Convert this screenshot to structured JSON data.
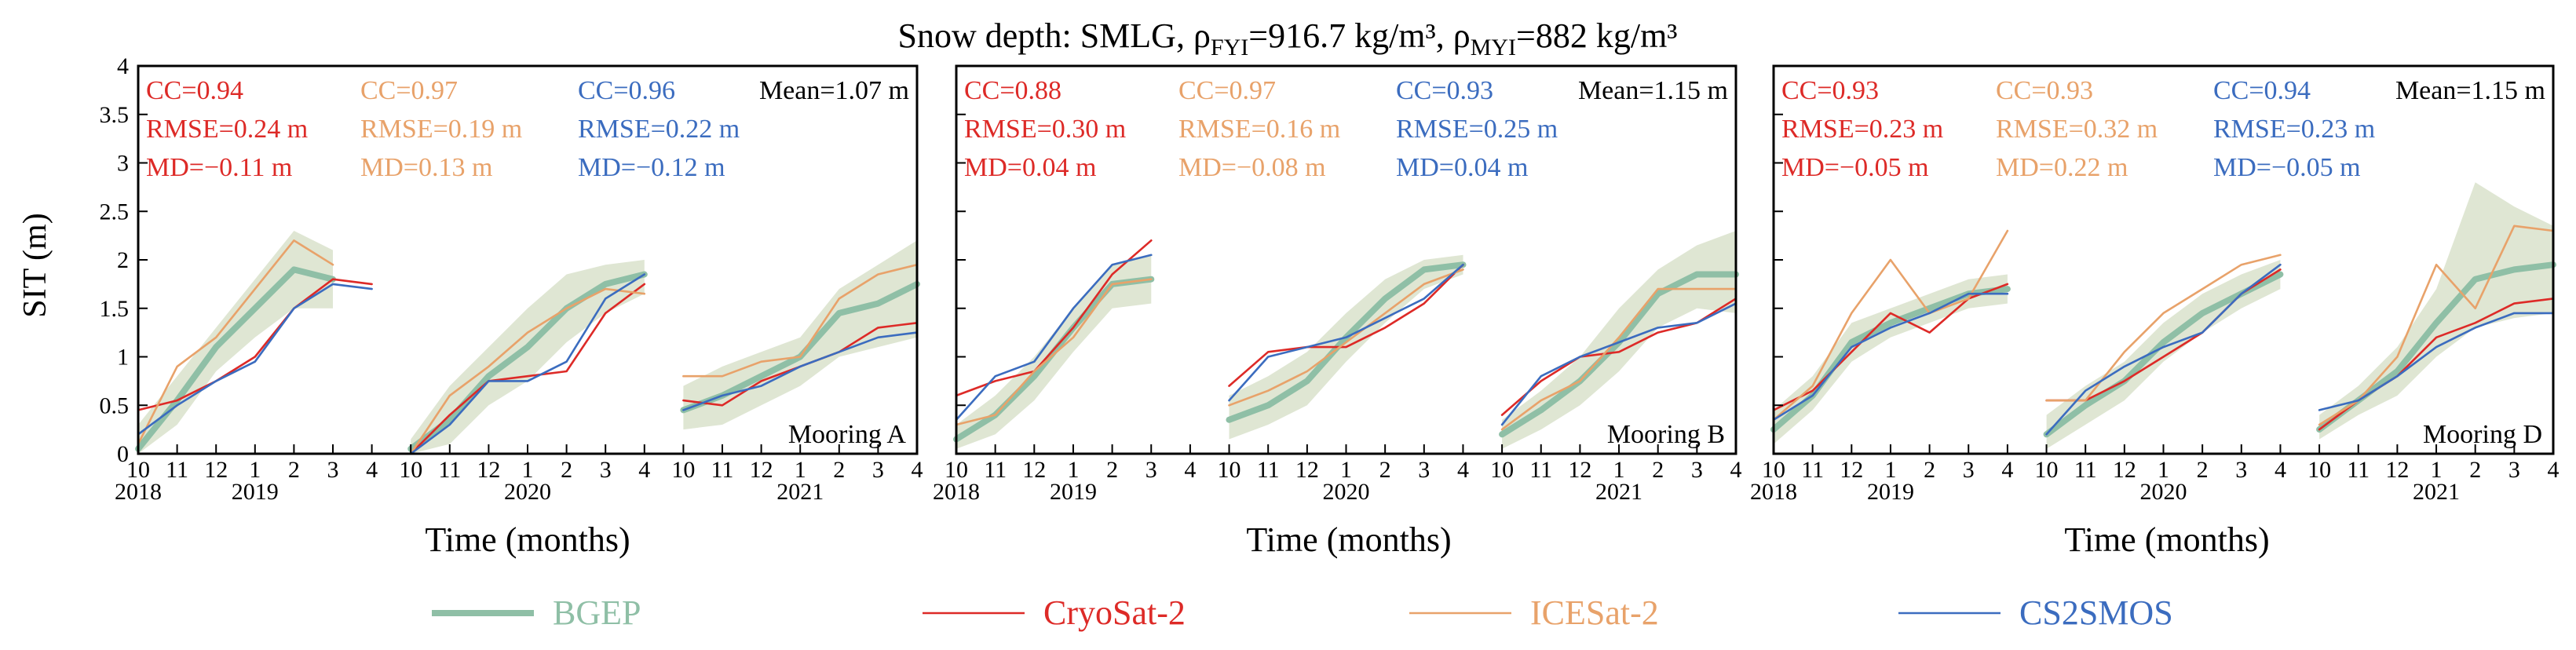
{
  "figure": {
    "title_prefix": "Snow depth: SMLG, ",
    "rho": "ρ",
    "sub_fyi": "FYI",
    "eq_fyi": "=916.7 kg/m³, ",
    "sub_myi": "MYI",
    "eq_myi": "=882 kg/m³",
    "ylabel": "SIT (m)",
    "xlabel": "Time (months)"
  },
  "colors": {
    "BGEP": "#8fbfa6",
    "BGEP_band": "#dfe6d3",
    "CryoSat-2": "#dd2a27",
    "ICESat-2": "#e8a26a",
    "CS2SMOS": "#3b6cbf"
  },
  "legend": [
    {
      "key": "BGEP",
      "label": "BGEP"
    },
    {
      "key": "CryoSat-2",
      "label": "CryoSat-2"
    },
    {
      "key": "ICESat-2",
      "label": "ICESat-2"
    },
    {
      "key": "CS2SMOS",
      "label": "CS2SMOS"
    }
  ],
  "chart_data": [
    {
      "type": "line",
      "title": "Mooring A",
      "ylabel": "SIT (m)",
      "xlabel": "Time (months)",
      "ylim": [
        0,
        4
      ],
      "yticks": [
        "0",
        "0.5",
        "1",
        "1.5",
        "2",
        "2.5",
        "3",
        "3.5",
        "4"
      ],
      "x_month_labels": [
        "10",
        "11",
        "12",
        "1",
        "2",
        "3",
        "4",
        "10",
        "11",
        "12",
        "1",
        "2",
        "3",
        "4",
        "10",
        "11",
        "12",
        "1",
        "2",
        "3",
        "4"
      ],
      "x_year_labels": [
        {
          "index": 0,
          "label": "2018"
        },
        {
          "index": 3,
          "label": "2019"
        },
        {
          "index": 10,
          "label": "2020"
        },
        {
          "index": 17,
          "label": "2021"
        }
      ],
      "mean_text": "Mean=1.07 m",
      "stats": [
        {
          "series": "CryoSat-2",
          "cc": "CC=0.94",
          "rmse": "RMSE=0.24 m",
          "md": "MD=−0.11 m"
        },
        {
          "series": "ICESat-2",
          "cc": "CC=0.97",
          "rmse": "RMSE=0.19 m",
          "md": "MD=0.13 m"
        },
        {
          "series": "CS2SMOS",
          "cc": "CC=0.96",
          "rmse": "RMSE=0.22 m",
          "md": "MD=−0.12 m"
        }
      ],
      "series": [
        {
          "name": "BGEP",
          "segments": [
            [
              0.05,
              0.55,
              1.1,
              1.5,
              1.9,
              1.8
            ],
            [
              0.05,
              0.35,
              0.8,
              1.1,
              1.5,
              1.75,
              1.85
            ],
            [
              0.45,
              0.6,
              0.8,
              1.0,
              1.45,
              1.55,
              1.75
            ]
          ],
          "band_upper": [
            [
              0.3,
              0.8,
              1.3,
              1.8,
              2.3,
              2.1
            ],
            [
              0.15,
              0.7,
              1.1,
              1.5,
              1.85,
              1.95,
              2.0
            ],
            [
              0.7,
              0.9,
              1.05,
              1.2,
              1.7,
              1.95,
              2.2
            ]
          ],
          "band_lower": [
            [
              0.0,
              0.3,
              0.85,
              1.2,
              1.5,
              1.5
            ],
            [
              0.0,
              0.1,
              0.5,
              0.75,
              1.15,
              1.45,
              1.65
            ],
            [
              0.25,
              0.3,
              0.5,
              0.7,
              1.0,
              1.1,
              1.2
            ]
          ]
        },
        {
          "name": "CryoSat-2",
          "segments": [
            [
              0.45,
              0.55,
              0.75,
              1.0,
              1.5,
              1.8,
              1.75
            ],
            [
              0.0,
              0.4,
              0.75,
              0.8,
              0.85,
              1.45,
              1.75
            ],
            [
              0.55,
              0.5,
              0.75,
              0.9,
              1.05,
              1.3,
              1.35
            ]
          ]
        },
        {
          "name": "ICESat-2",
          "segments": [
            [
              0.1,
              0.9,
              1.2,
              1.7,
              2.2,
              1.95
            ],
            [
              0.0,
              0.6,
              0.9,
              1.25,
              1.5,
              1.7,
              1.65
            ],
            [
              0.8,
              0.8,
              0.95,
              1.0,
              1.6,
              1.85,
              1.95
            ]
          ]
        },
        {
          "name": "CS2SMOS",
          "segments": [
            [
              0.2,
              0.5,
              0.75,
              0.95,
              1.5,
              1.75,
              1.7
            ],
            [
              0.0,
              0.3,
              0.75,
              0.75,
              0.95,
              1.6,
              1.85
            ],
            [
              0.45,
              0.6,
              0.7,
              0.9,
              1.05,
              1.2,
              1.25
            ]
          ]
        }
      ]
    },
    {
      "type": "line",
      "title": "Mooring B",
      "ylabel": "SIT (m)",
      "xlabel": "Time (months)",
      "ylim": [
        0,
        4
      ],
      "yticks": [
        "0",
        "0.5",
        "1",
        "1.5",
        "2",
        "2.5",
        "3",
        "3.5",
        "4"
      ],
      "x_month_labels": [
        "10",
        "11",
        "12",
        "1",
        "2",
        "3",
        "4",
        "10",
        "11",
        "12",
        "1",
        "2",
        "3",
        "4",
        "10",
        "11",
        "12",
        "1",
        "2",
        "3",
        "4"
      ],
      "x_year_labels": [
        {
          "index": 0,
          "label": "2018"
        },
        {
          "index": 3,
          "label": "2019"
        },
        {
          "index": 10,
          "label": "2020"
        },
        {
          "index": 17,
          "label": "2021"
        }
      ],
      "mean_text": "Mean=1.15 m",
      "stats": [
        {
          "series": "CryoSat-2",
          "cc": "CC=0.88",
          "rmse": "RMSE=0.30 m",
          "md": "MD=0.04 m"
        },
        {
          "series": "ICESat-2",
          "cc": "CC=0.97",
          "rmse": "RMSE=0.16 m",
          "md": "MD=−0.08 m"
        },
        {
          "series": "CS2SMOS",
          "cc": "CC=0.93",
          "rmse": "RMSE=0.25 m",
          "md": "MD=0.04 m"
        }
      ],
      "series": [
        {
          "name": "BGEP",
          "segments": [
            [
              0.15,
              0.4,
              0.8,
              1.3,
              1.75,
              1.8
            ],
            [
              0.35,
              0.5,
              0.75,
              1.2,
              1.6,
              1.9,
              1.95
            ],
            [
              0.2,
              0.45,
              0.75,
              1.15,
              1.65,
              1.85,
              1.85
            ]
          ],
          "band_upper": [
            [
              0.3,
              0.6,
              1.0,
              1.5,
              1.95,
              2.05
            ],
            [
              0.6,
              0.8,
              1.05,
              1.45,
              1.8,
              2.0,
              2.05
            ],
            [
              0.35,
              0.65,
              1.0,
              1.5,
              1.9,
              2.15,
              2.3
            ]
          ],
          "band_lower": [
            [
              0.05,
              0.2,
              0.55,
              1.05,
              1.5,
              1.55
            ],
            [
              0.15,
              0.3,
              0.5,
              0.95,
              1.35,
              1.7,
              1.85
            ],
            [
              0.05,
              0.25,
              0.5,
              0.85,
              1.3,
              1.5,
              1.45
            ]
          ]
        },
        {
          "name": "CryoSat-2",
          "segments": [
            [
              0.6,
              0.75,
              0.85,
              1.3,
              1.85,
              2.2
            ],
            [
              0.7,
              1.05,
              1.1,
              1.1,
              1.3,
              1.55,
              1.95
            ],
            [
              0.4,
              0.75,
              1.0,
              1.05,
              1.25,
              1.35,
              1.6
            ]
          ]
        },
        {
          "name": "ICESat-2",
          "segments": [
            [
              0.3,
              0.4,
              0.85,
              1.2,
              1.75,
              1.8
            ],
            [
              0.5,
              0.65,
              0.85,
              1.15,
              1.45,
              1.75,
              1.9
            ],
            [
              0.25,
              0.55,
              0.75,
              1.2,
              1.7,
              1.7,
              1.7
            ]
          ]
        },
        {
          "name": "CS2SMOS",
          "segments": [
            [
              0.35,
              0.8,
              0.95,
              1.5,
              1.95,
              2.05
            ],
            [
              0.55,
              1.0,
              1.1,
              1.2,
              1.4,
              1.6,
              1.95
            ],
            [
              0.3,
              0.8,
              1.0,
              1.15,
              1.3,
              1.35,
              1.55
            ]
          ]
        }
      ]
    },
    {
      "type": "line",
      "title": "Mooring D",
      "ylabel": "SIT (m)",
      "xlabel": "Time (months)",
      "ylim": [
        0,
        4
      ],
      "yticks": [
        "0",
        "0.5",
        "1",
        "1.5",
        "2",
        "2.5",
        "3",
        "3.5",
        "4"
      ],
      "x_month_labels": [
        "10",
        "11",
        "12",
        "1",
        "2",
        "3",
        "4",
        "10",
        "11",
        "12",
        "1",
        "2",
        "3",
        "4",
        "10",
        "11",
        "12",
        "1",
        "2",
        "3",
        "4"
      ],
      "x_year_labels": [
        {
          "index": 0,
          "label": "2018"
        },
        {
          "index": 3,
          "label": "2019"
        },
        {
          "index": 10,
          "label": "2020"
        },
        {
          "index": 17,
          "label": "2021"
        }
      ],
      "mean_text": "Mean=1.15 m",
      "stats": [
        {
          "series": "CryoSat-2",
          "cc": "CC=0.93",
          "rmse": "RMSE=0.23 m",
          "md": "MD=−0.05 m"
        },
        {
          "series": "ICESat-2",
          "cc": "CC=0.93",
          "rmse": "RMSE=0.32 m",
          "md": "MD=0.22 m"
        },
        {
          "series": "CS2SMOS",
          "cc": "CC=0.94",
          "rmse": "RMSE=0.23 m",
          "md": "MD=−0.05 m"
        }
      ],
      "series": [
        {
          "name": "BGEP",
          "segments": [
            [
              0.25,
              0.6,
              1.15,
              1.35,
              1.5,
              1.65,
              1.7
            ],
            [
              0.2,
              0.5,
              0.75,
              1.15,
              1.45,
              1.65,
              1.85
            ],
            [
              0.25,
              0.55,
              0.85,
              1.35,
              1.8,
              1.9,
              1.95
            ]
          ],
          "band_upper": [
            [
              0.45,
              0.8,
              1.35,
              1.5,
              1.65,
              1.8,
              1.85
            ],
            [
              0.4,
              0.7,
              0.95,
              1.35,
              1.65,
              1.85,
              2.0
            ],
            [
              0.4,
              0.7,
              1.1,
              1.7,
              2.8,
              2.55,
              2.35
            ]
          ],
          "band_lower": [
            [
              0.1,
              0.45,
              0.95,
              1.2,
              1.35,
              1.5,
              1.55
            ],
            [
              0.05,
              0.3,
              0.55,
              0.95,
              1.25,
              1.5,
              1.7
            ],
            [
              0.15,
              0.4,
              0.6,
              1.0,
              1.3,
              1.4,
              1.45
            ]
          ]
        },
        {
          "name": "CryoSat-2",
          "segments": [
            [
              0.45,
              0.65,
              1.05,
              1.45,
              1.25,
              1.6,
              1.75
            ],
            [
              0.55,
              0.55,
              0.75,
              1.0,
              1.25,
              1.65,
              1.9
            ],
            [
              0.25,
              0.55,
              0.8,
              1.2,
              1.35,
              1.55,
              1.6
            ]
          ]
        },
        {
          "name": "ICESat-2",
          "segments": [
            [
              0.35,
              0.7,
              1.45,
              2.0,
              1.45,
              1.6,
              2.3
            ],
            [
              0.55,
              0.55,
              1.05,
              1.45,
              1.7,
              1.95,
              2.05
            ],
            [
              0.3,
              0.55,
              1.0,
              1.95,
              1.5,
              2.35,
              2.3
            ]
          ]
        },
        {
          "name": "CS2SMOS",
          "segments": [
            [
              0.35,
              0.6,
              1.1,
              1.3,
              1.45,
              1.65,
              1.65
            ],
            [
              0.2,
              0.65,
              0.9,
              1.1,
              1.25,
              1.65,
              1.95
            ],
            [
              0.45,
              0.55,
              0.8,
              1.1,
              1.3,
              1.45,
              1.45
            ]
          ]
        }
      ]
    }
  ]
}
